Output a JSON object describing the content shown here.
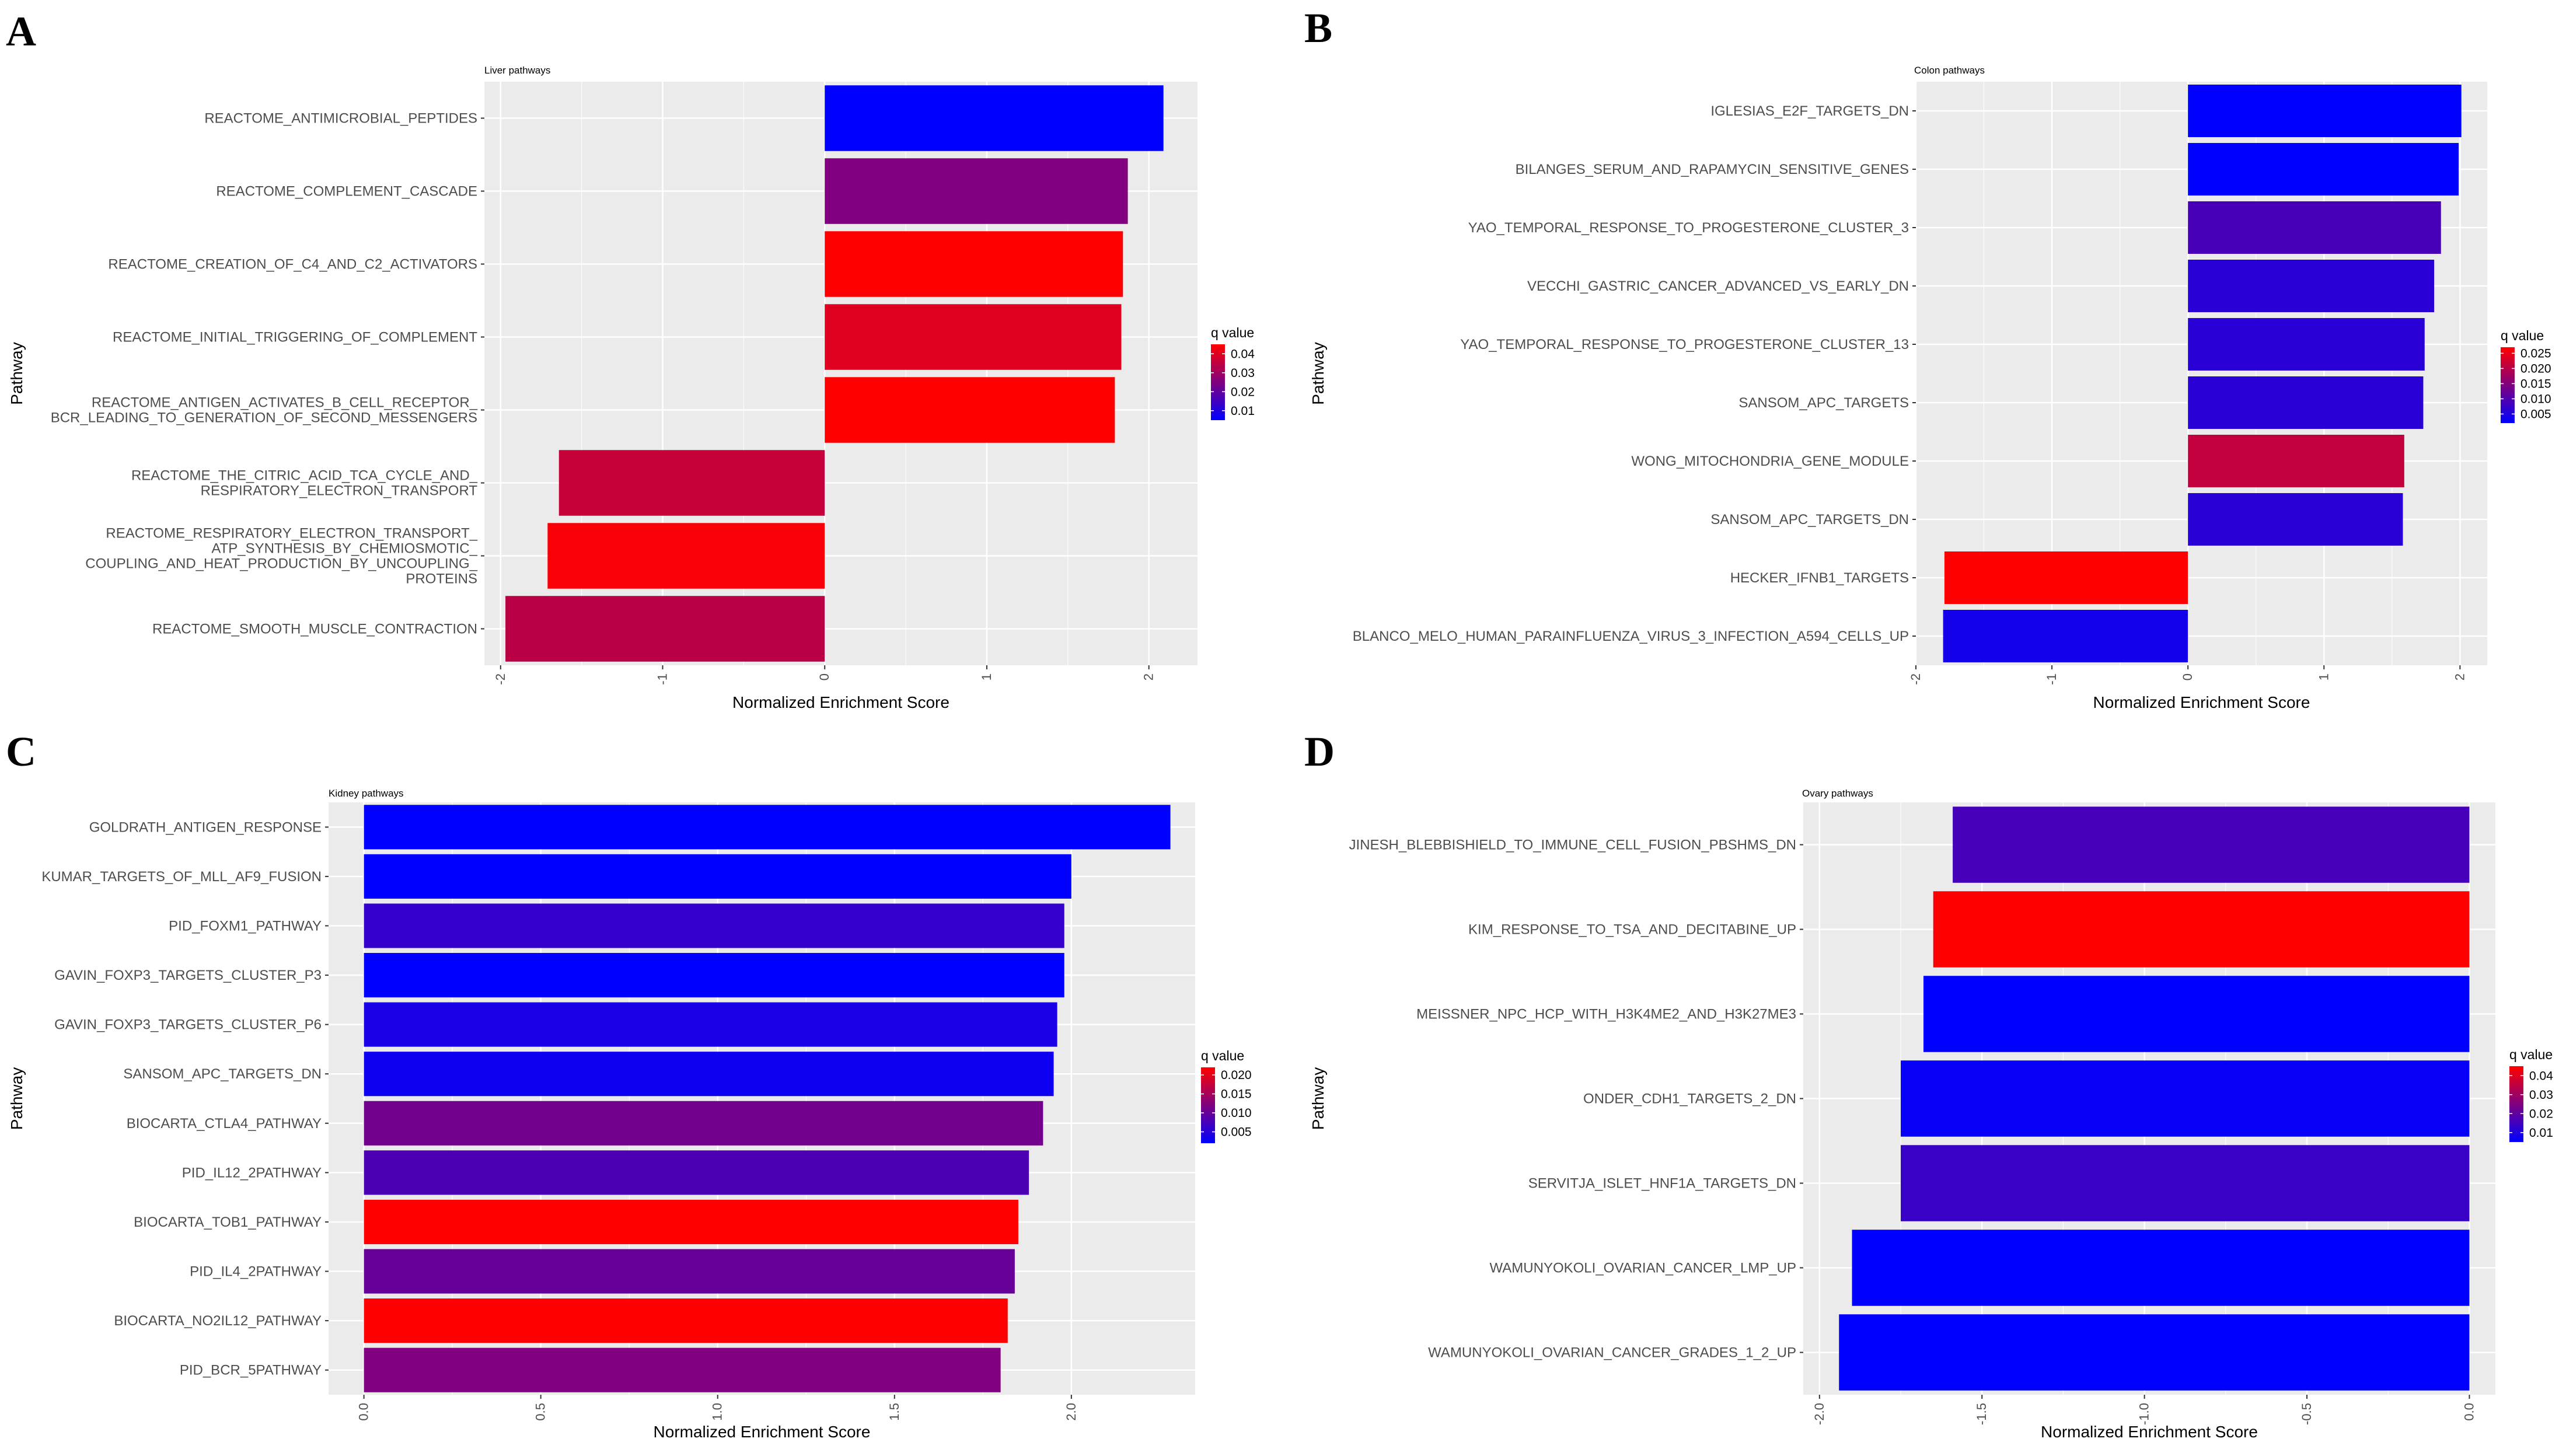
{
  "figure": {
    "panel_letters": [
      "A",
      "B",
      "C",
      "D"
    ]
  },
  "colors": {
    "low": "#0000ff",
    "high": "#ff0000",
    "panel_bg": "#ebebeb",
    "grid": "#ffffff"
  },
  "chart_data": [
    {
      "panel": "A",
      "type": "bar",
      "orientation": "horizontal",
      "title": "Liver pathways",
      "xlabel": "Normalized Enrichment Score",
      "ylabel": "Pathway",
      "xlim": [
        -2.1,
        2.3
      ],
      "xticks": [
        -2,
        -1,
        0,
        1,
        2
      ],
      "xtick_labels": [
        "-2",
        "-1",
        "0",
        "1",
        "2"
      ],
      "legend": {
        "title": "q value",
        "range": [
          0.005,
          0.045
        ],
        "breaks": [
          0.04,
          0.03,
          0.02,
          0.01
        ],
        "labels": [
          "0.04",
          "0.03",
          "0.02",
          "0.01"
        ]
      },
      "bars": [
        {
          "label": [
            "REACTOME_ANTIMICROBIAL_PEPTIDES"
          ],
          "value": 2.09,
          "q": 0.005
        },
        {
          "label": [
            "REACTOME_COMPLEMENT_CASCADE"
          ],
          "value": 1.87,
          "q": 0.025
        },
        {
          "label": [
            "REACTOME_CREATION_OF_C4_AND_C2_ACTIVATORS"
          ],
          "value": 1.84,
          "q": 0.045
        },
        {
          "label": [
            "REACTOME_INITIAL_TRIGGERING_OF_COMPLEMENT"
          ],
          "value": 1.83,
          "q": 0.04
        },
        {
          "label": [
            "REACTOME_ANTIGEN_ACTIVATES_B_CELL_RECEPTOR_",
            "BCR_LEADING_TO_GENERATION_OF_SECOND_MESSENGERS"
          ],
          "value": 1.79,
          "q": 0.045
        },
        {
          "label": [
            "REACTOME_THE_CITRIC_ACID_TCA_CYCLE_AND_",
            "RESPIRATORY_ELECTRON_TRANSPORT"
          ],
          "value": -1.64,
          "q": 0.036
        },
        {
          "label": [
            "REACTOME_RESPIRATORY_ELECTRON_TRANSPORT_",
            "ATP_SYNTHESIS_BY_CHEMIOSMOTIC_",
            "COUPLING_AND_HEAT_PRODUCTION_BY_UNCOUPLING_",
            "PROTEINS"
          ],
          "value": -1.71,
          "q": 0.044
        },
        {
          "label": [
            "REACTOME_SMOOTH_MUSCLE_CONTRACTION"
          ],
          "value": -1.97,
          "q": 0.034
        }
      ]
    },
    {
      "panel": "B",
      "type": "bar",
      "orientation": "horizontal",
      "title": "Colon pathways",
      "xlabel": "Normalized Enrichment Score",
      "ylabel": "Pathway",
      "xlim": [
        -2.0,
        2.2
      ],
      "xticks": [
        -2,
        -1,
        0,
        1,
        2
      ],
      "xtick_labels": [
        "-2",
        "-1",
        "0",
        "1",
        "2"
      ],
      "legend": {
        "title": "q value",
        "range": [
          0.002,
          0.027
        ],
        "breaks": [
          0.025,
          0.02,
          0.015,
          0.01,
          0.005
        ],
        "labels": [
          "0.025",
          "0.020",
          "0.015",
          "0.010",
          "0.005"
        ]
      },
      "bars": [
        {
          "label": [
            "IGLESIAS_E2F_TARGETS_DN"
          ],
          "value": 2.01,
          "q": 0.002
        },
        {
          "label": [
            "BILANGES_SERUM_AND_RAPAMYCIN_SENSITIVE_GENES"
          ],
          "value": 1.99,
          "q": 0.002
        },
        {
          "label": [
            "YAO_TEMPORAL_RESPONSE_TO_PROGESTERONE_CLUSTER_3"
          ],
          "value": 1.86,
          "q": 0.009
        },
        {
          "label": [
            "VECCHI_GASTRIC_CANCER_ADVANCED_VS_EARLY_DN"
          ],
          "value": 1.81,
          "q": 0.006
        },
        {
          "label": [
            "YAO_TEMPORAL_RESPONSE_TO_PROGESTERONE_CLUSTER_13"
          ],
          "value": 1.74,
          "q": 0.006
        },
        {
          "label": [
            "SANSOM_APC_TARGETS"
          ],
          "value": 1.73,
          "q": 0.006
        },
        {
          "label": [
            "WONG_MITOCHONDRIA_GENE_MODULE"
          ],
          "value": 1.59,
          "q": 0.021
        },
        {
          "label": [
            "SANSOM_APC_TARGETS_DN"
          ],
          "value": 1.58,
          "q": 0.006
        },
        {
          "label": [
            "HECKER_IFNB1_TARGETS"
          ],
          "value": -1.79,
          "q": 0.027
        },
        {
          "label": [
            "BLANCO_MELO_HUMAN_PARAINFLUENZA_VIRUS_3_INFECTION_A594_CELLS_UP"
          ],
          "value": -1.8,
          "q": 0.004
        }
      ]
    },
    {
      "panel": "C",
      "type": "bar",
      "orientation": "horizontal",
      "title": "Kidney pathways",
      "xlabel": "Normalized Enrichment Score",
      "ylabel": "Pathway",
      "xlim": [
        -0.1,
        2.35
      ],
      "xticks": [
        0,
        0.5,
        1,
        1.5,
        2
      ],
      "xtick_labels": [
        "0.0",
        "0.5",
        "1.0",
        "1.5",
        "2.0"
      ],
      "legend": {
        "title": "q value",
        "range": [
          0.002,
          0.022
        ],
        "breaks": [
          0.02,
          0.015,
          0.01,
          0.005
        ],
        "labels": [
          "0.020",
          "0.015",
          "0.010",
          "0.005"
        ]
      },
      "bars": [
        {
          "label": [
            "GOLDRATH_ANTIGEN_RESPONSE"
          ],
          "value": 2.28,
          "q": 0.002
        },
        {
          "label": [
            "KUMAR_TARGETS_OF_MLL_AF9_FUSION"
          ],
          "value": 2.0,
          "q": 0.002
        },
        {
          "label": [
            "PID_FOXM1_PATHWAY"
          ],
          "value": 1.98,
          "q": 0.006
        },
        {
          "label": [
            "GAVIN_FOXP3_TARGETS_CLUSTER_P3"
          ],
          "value": 1.98,
          "q": 0.002
        },
        {
          "label": [
            "GAVIN_FOXP3_TARGETS_CLUSTER_P6"
          ],
          "value": 1.96,
          "q": 0.004
        },
        {
          "label": [
            "SANSOM_APC_TARGETS_DN"
          ],
          "value": 1.95,
          "q": 0.003
        },
        {
          "label": [
            "BIOCARTA_CTLA4_PATHWAY"
          ],
          "value": 1.92,
          "q": 0.011
        },
        {
          "label": [
            "PID_IL12_2PATHWAY"
          ],
          "value": 1.88,
          "q": 0.008
        },
        {
          "label": [
            "BIOCARTA_TOB1_PATHWAY"
          ],
          "value": 1.85,
          "q": 0.022
        },
        {
          "label": [
            "PID_IL4_2PATHWAY"
          ],
          "value": 1.84,
          "q": 0.01
        },
        {
          "label": [
            "BIOCARTA_NO2IL12_PATHWAY"
          ],
          "value": 1.82,
          "q": 0.022
        },
        {
          "label": [
            "PID_BCR_5PATHWAY"
          ],
          "value": 1.8,
          "q": 0.012
        }
      ]
    },
    {
      "panel": "D",
      "type": "bar",
      "orientation": "horizontal",
      "title": "Ovary pathways",
      "xlabel": "Normalized Enrichment Score",
      "ylabel": "Pathway",
      "xlim": [
        -2.05,
        0.08
      ],
      "xticks": [
        -2,
        -1.5,
        -1,
        -0.5,
        0
      ],
      "xtick_labels": [
        "-2.0",
        "-1.5",
        "-1.0",
        "-0.5",
        "0.0"
      ],
      "legend": {
        "title": "q value",
        "range": [
          0.005,
          0.045
        ],
        "breaks": [
          0.04,
          0.03,
          0.02,
          0.01
        ],
        "labels": [
          "0.04",
          "0.03",
          "0.02",
          "0.01"
        ]
      },
      "bars": [
        {
          "label": [
            "JINESH_BLEBBISHIELD_TO_IMMUNE_CELL_FUSION_PBSHMS_DN"
          ],
          "value": -1.59,
          "q": 0.016
        },
        {
          "label": [
            "KIM_RESPONSE_TO_TSA_AND_DECITABINE_UP"
          ],
          "value": -1.65,
          "q": 0.045
        },
        {
          "label": [
            "MEISSNER_NPC_HCP_WITH_H3K4ME2_AND_H3K27ME3"
          ],
          "value": -1.68,
          "q": 0.005
        },
        {
          "label": [
            "ONDER_CDH1_TARGETS_2_DN"
          ],
          "value": -1.75,
          "q": 0.006
        },
        {
          "label": [
            "SERVITJA_ISLET_HNF1A_TARGETS_DN"
          ],
          "value": -1.75,
          "q": 0.014
        },
        {
          "label": [
            "WAMUNYOKOLI_OVARIAN_CANCER_LMP_UP"
          ],
          "value": -1.9,
          "q": 0.005
        },
        {
          "label": [
            "WAMUNYOKOLI_OVARIAN_CANCER_GRADES_1_2_UP"
          ],
          "value": -1.94,
          "q": 0.005
        }
      ]
    }
  ]
}
